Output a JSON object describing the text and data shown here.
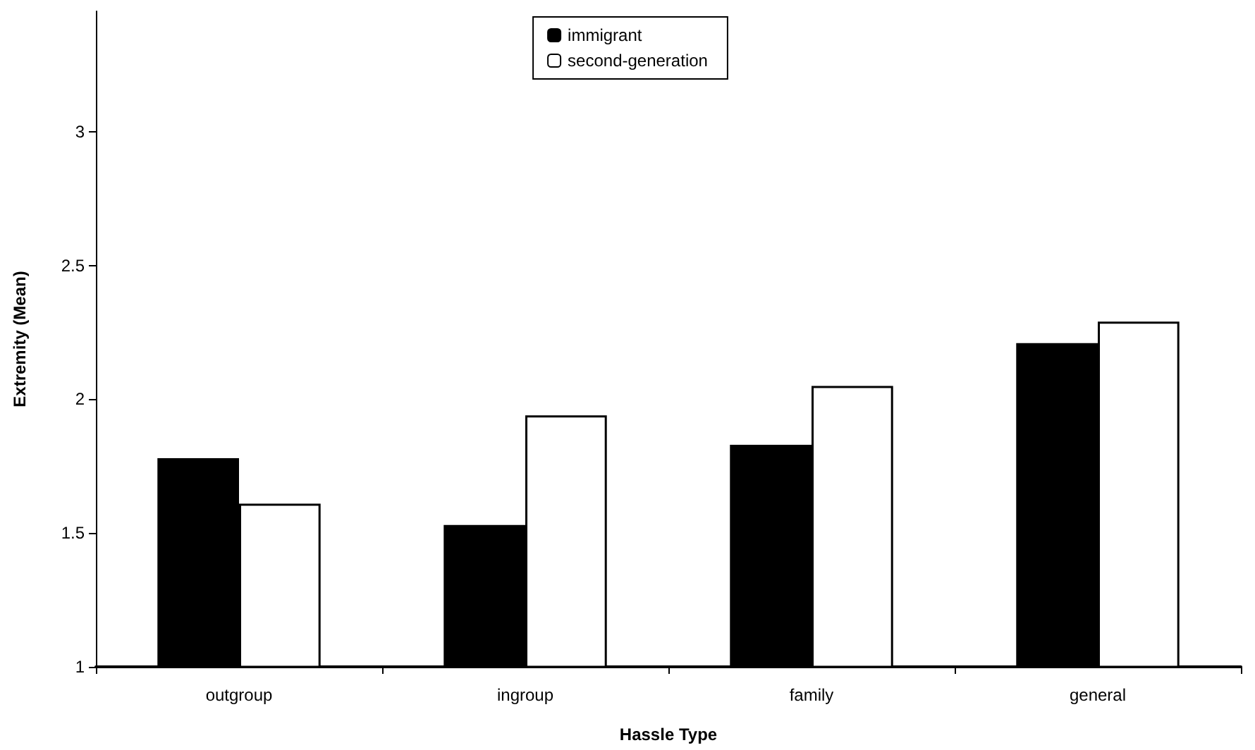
{
  "chart_data": {
    "type": "bar",
    "xlabel": "Hassle Type",
    "ylabel": "Extremity (Mean)",
    "categories": [
      "outgroup",
      "ingroup",
      "family",
      "general"
    ],
    "series": [
      {
        "name": "immigrant",
        "color": "#000000",
        "values": [
          1.78,
          1.53,
          1.83,
          2.21
        ]
      },
      {
        "name": "second-generation",
        "color": "#ffffff",
        "values": [
          1.61,
          1.94,
          2.05,
          2.29
        ]
      }
    ],
    "ylim": [
      1,
      3.45
    ],
    "yticks": [
      1,
      1.5,
      2,
      2.5,
      3
    ],
    "grid": false,
    "legend": "top"
  }
}
